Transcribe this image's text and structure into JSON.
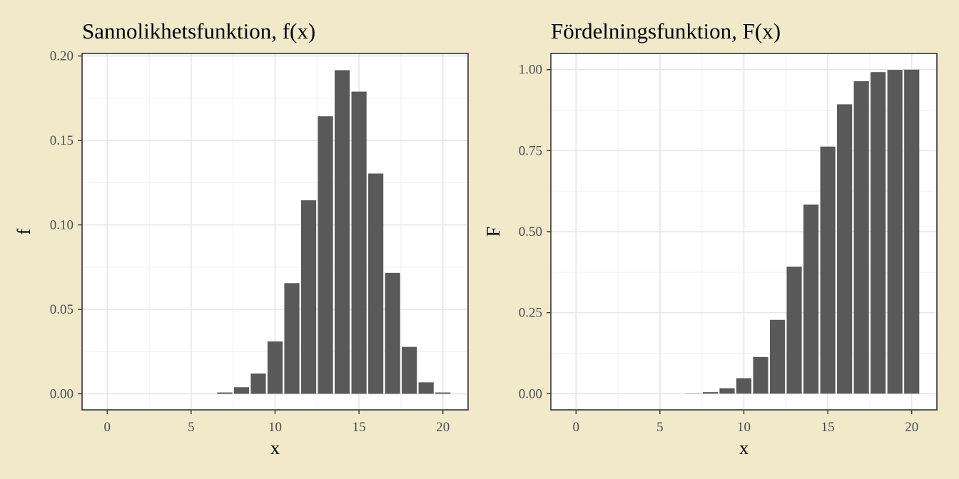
{
  "chart_data": [
    {
      "type": "bar",
      "title": "Sannolikhetsfunktion, f(x)",
      "xlabel": "x",
      "ylabel": "f",
      "xlim": [
        -1.5,
        21.5
      ],
      "ylim": [
        -0.0095,
        0.2015
      ],
      "xticks": [
        0,
        5,
        10,
        15,
        20
      ],
      "xtick_labels": [
        "0",
        "5",
        "10",
        "15",
        "20"
      ],
      "yticks": [
        0,
        0.05,
        0.1,
        0.15,
        0.2
      ],
      "ytick_labels": [
        "0.00",
        "0.05",
        "0.10",
        "0.15",
        "0.20"
      ],
      "grid": true,
      "bar_color": "#595959",
      "x": [
        0,
        1,
        2,
        3,
        4,
        5,
        6,
        7,
        8,
        9,
        10,
        11,
        12,
        13,
        14,
        15,
        16,
        17,
        18,
        19,
        20
      ],
      "values": [
        0,
        0,
        0,
        0,
        0,
        0,
        0,
        0.0008,
        0.0039,
        0.012,
        0.031,
        0.0655,
        0.1146,
        0.1643,
        0.1916,
        0.1789,
        0.1304,
        0.0716,
        0.0278,
        0.0068,
        0.0008
      ]
    },
    {
      "type": "bar",
      "title": "Fördelningsfunktion, F(x)",
      "xlabel": "x",
      "ylabel": "F",
      "xlim": [
        -1.5,
        21.5
      ],
      "ylim": [
        -0.05,
        1.05
      ],
      "xticks": [
        0,
        5,
        10,
        15,
        20
      ],
      "xtick_labels": [
        "0",
        "5",
        "10",
        "15",
        "20"
      ],
      "yticks": [
        0,
        0.25,
        0.5,
        0.75,
        1.0
      ],
      "ytick_labels": [
        "0.00",
        "0.25",
        "0.50",
        "0.75",
        "1.00"
      ],
      "grid": true,
      "bar_color": "#595959",
      "x": [
        0,
        1,
        2,
        3,
        4,
        5,
        6,
        7,
        8,
        9,
        10,
        11,
        12,
        13,
        14,
        15,
        16,
        17,
        18,
        19,
        20
      ],
      "values": [
        0,
        0,
        0,
        0,
        0,
        0,
        0,
        0.0008,
        0.0047,
        0.0167,
        0.0477,
        0.1132,
        0.2278,
        0.3921,
        0.5837,
        0.7626,
        0.893,
        0.9646,
        0.9924,
        0.9992,
        1.0
      ]
    }
  ]
}
